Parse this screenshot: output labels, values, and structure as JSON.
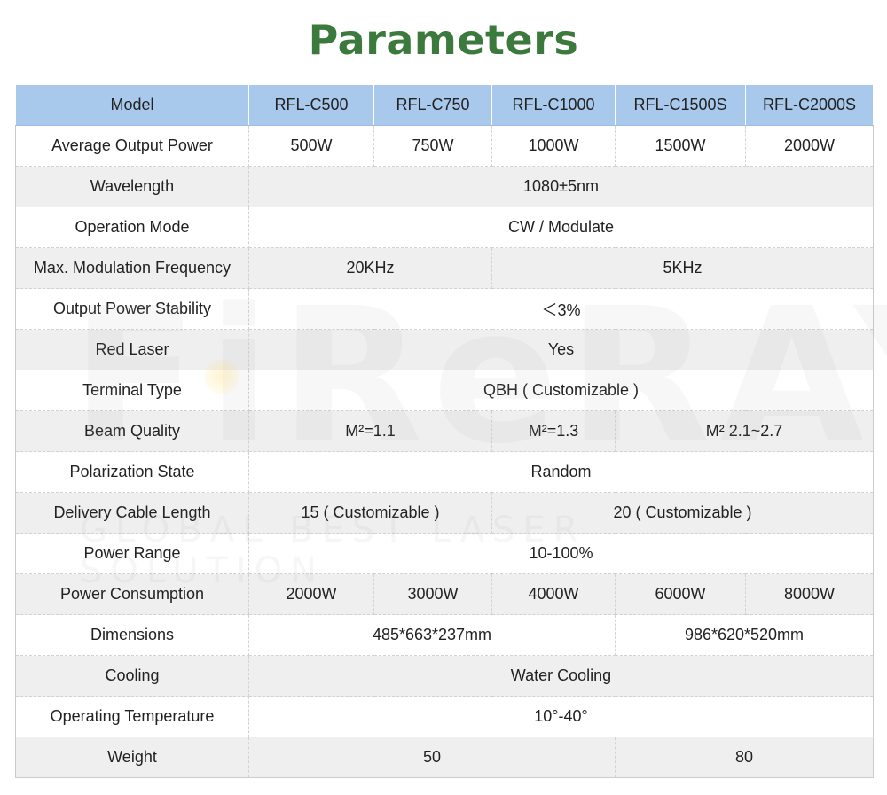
{
  "title": "Parameters",
  "watermark": {
    "brand": "FiReRAY",
    "tagline": "GLOBAL BEST LASER SOLUTION"
  },
  "table": {
    "header": {
      "label": "Model",
      "models": [
        "RFL-C500",
        "RFL-C750",
        "RFL-C1000",
        "RFL-C1500S",
        "RFL-C2000S"
      ]
    },
    "rows": [
      {
        "label": "Average Output Power",
        "values": [
          "500W",
          "750W",
          "1000W",
          "1500W",
          "2000W"
        ]
      },
      {
        "label": "Wavelength",
        "values": [
          "1080±5nm"
        ]
      },
      {
        "label": "Operation Mode",
        "values": [
          "CW / Modulate"
        ]
      },
      {
        "label": "Max. Modulation Frequency",
        "values": [
          "20KHz",
          "5KHz"
        ]
      },
      {
        "label": "Output Power Stability",
        "values": [
          "＜3%"
        ]
      },
      {
        "label": "Red Laser",
        "values": [
          "Yes"
        ]
      },
      {
        "label": "Terminal Type",
        "values": [
          "QBH ( Customizable )"
        ]
      },
      {
        "label": "Beam Quality",
        "values": [
          "M²=1.1",
          "M²=1.3",
          "M²  2.1~2.7"
        ]
      },
      {
        "label": "Polarization State",
        "values": [
          "Random"
        ]
      },
      {
        "label": "Delivery Cable Length",
        "values": [
          "15 ( Customizable )",
          "20 ( Customizable )"
        ]
      },
      {
        "label": "Power Range",
        "values": [
          "10-100%"
        ]
      },
      {
        "label": "Power Consumption",
        "values": [
          "2000W",
          "3000W",
          "4000W",
          "6000W",
          "8000W"
        ]
      },
      {
        "label": "Dimensions",
        "values": [
          "485*663*237mm",
          "986*620*520mm"
        ]
      },
      {
        "label": "Cooling",
        "values": [
          "Water Cooling"
        ]
      },
      {
        "label": "Operating Temperature",
        "values": [
          "10°-40°"
        ]
      },
      {
        "label": "Weight",
        "values": [
          "50",
          "80"
        ]
      }
    ]
  },
  "colors": {
    "title": "#3b7a3c",
    "header_bg": "#a8c8ec",
    "even_row_bg": "#ececec",
    "odd_row_bg": "#ffffff"
  }
}
